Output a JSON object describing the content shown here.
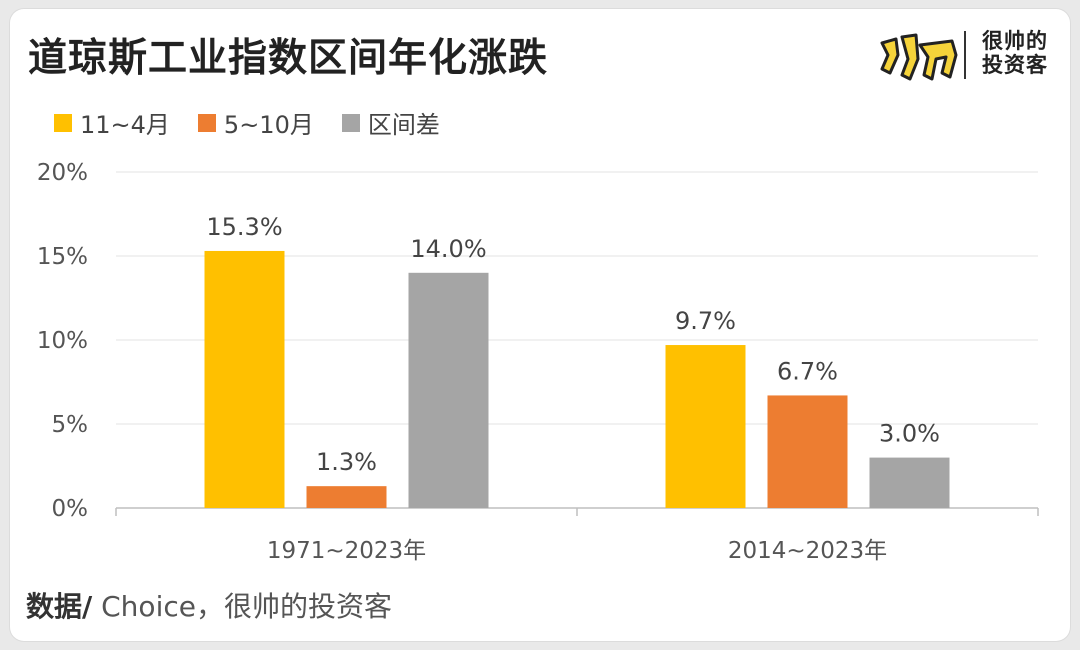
{
  "header": {
    "title": "道琼斯工业指数区间年化涨跌"
  },
  "brand": {
    "logo_mark": "帅",
    "name_line1": "很帅的",
    "name_line2": "投资客",
    "accent": "#f5d33a"
  },
  "source": {
    "label": "数据/",
    "text": " Choice，很帅的投资客"
  },
  "chart_data": {
    "type": "bar",
    "title": "道琼斯工业指数区间年化涨跌",
    "categories": [
      "1971~2023年",
      "2014~2023年"
    ],
    "series": [
      {
        "name": "11~4月",
        "values": [
          15.3,
          9.7
        ],
        "color": "#ffc000",
        "labels": [
          "15.3%",
          "9.7%"
        ]
      },
      {
        "name": "5~10月",
        "values": [
          1.3,
          6.7
        ],
        "color": "#ed7d31",
        "labels": [
          "1.3%",
          "6.7%"
        ]
      },
      {
        "name": "区间差",
        "values": [
          14.0,
          3.0
        ],
        "color": "#a5a5a5",
        "labels": [
          "14.0%",
          "3.0%"
        ]
      }
    ],
    "ylim": [
      0,
      20
    ],
    "yticks": [
      0,
      5,
      10,
      15,
      20
    ],
    "ytick_labels": [
      "0%",
      "5%",
      "10%",
      "15%",
      "20%"
    ],
    "grid": true,
    "legend_position": "top-left"
  }
}
